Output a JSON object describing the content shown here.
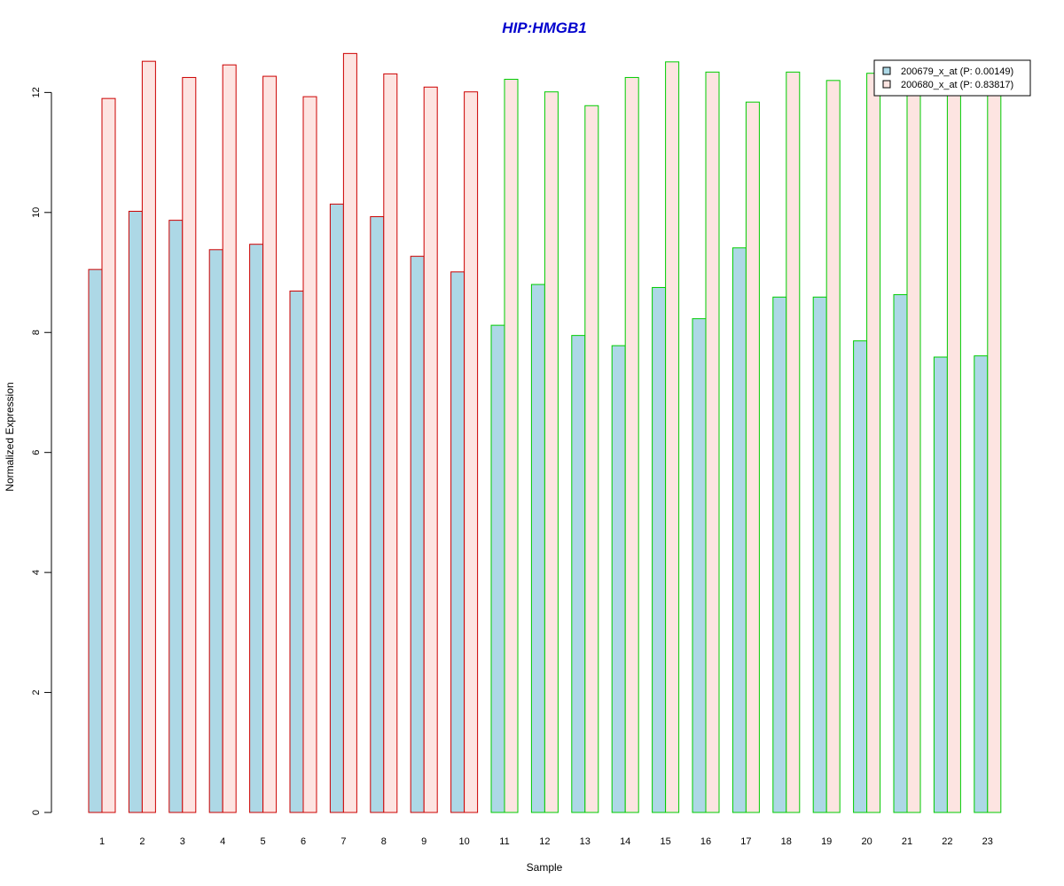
{
  "chart_data": {
    "type": "bar",
    "title": "HIP:HMGB1",
    "xlabel": "Sample",
    "ylabel": "Normalized Expression",
    "ylim": [
      0,
      12.67
    ],
    "yticks": [
      0,
      2,
      4,
      6,
      8,
      10,
      12
    ],
    "categories": [
      "1",
      "2",
      "3",
      "4",
      "5",
      "6",
      "7",
      "8",
      "9",
      "10",
      "11",
      "12",
      "13",
      "14",
      "15",
      "16",
      "17",
      "18",
      "19",
      "20",
      "21",
      "22",
      "23"
    ],
    "series": [
      {
        "name": "200679_x_at (P: 0.00149)",
        "fill": "#add8e6",
        "values": [
          9.05,
          10.02,
          9.87,
          9.38,
          9.47,
          8.69,
          10.14,
          9.93,
          9.27,
          9.01,
          8.12,
          8.8,
          7.95,
          7.78,
          8.75,
          8.23,
          9.41,
          8.59,
          8.59,
          7.86,
          8.63,
          7.59,
          7.61
        ]
      },
      {
        "name": "200680_x_at (P: 0.83817)",
        "fill": "#fde4e1",
        "values": [
          11.9,
          12.52,
          12.25,
          12.46,
          12.27,
          11.93,
          12.65,
          12.31,
          12.09,
          12.01,
          12.22,
          12.01,
          11.78,
          12.25,
          12.51,
          12.34,
          11.84,
          12.34,
          12.2,
          12.32,
          12.0,
          12.0,
          12.0
        ]
      }
    ],
    "group_borders": [
      "#cc0000",
      "#cc0000",
      "#cc0000",
      "#cc0000",
      "#cc0000",
      "#cc0000",
      "#cc0000",
      "#cc0000",
      "#cc0000",
      "#cc0000",
      "#00cc00",
      "#00cc00",
      "#00cc00",
      "#00cc00",
      "#00cc00",
      "#00cc00",
      "#00cc00",
      "#00cc00",
      "#00cc00",
      "#00cc00",
      "#00cc00",
      "#00cc00",
      "#00cc00"
    ],
    "legend_position": "top-right"
  }
}
